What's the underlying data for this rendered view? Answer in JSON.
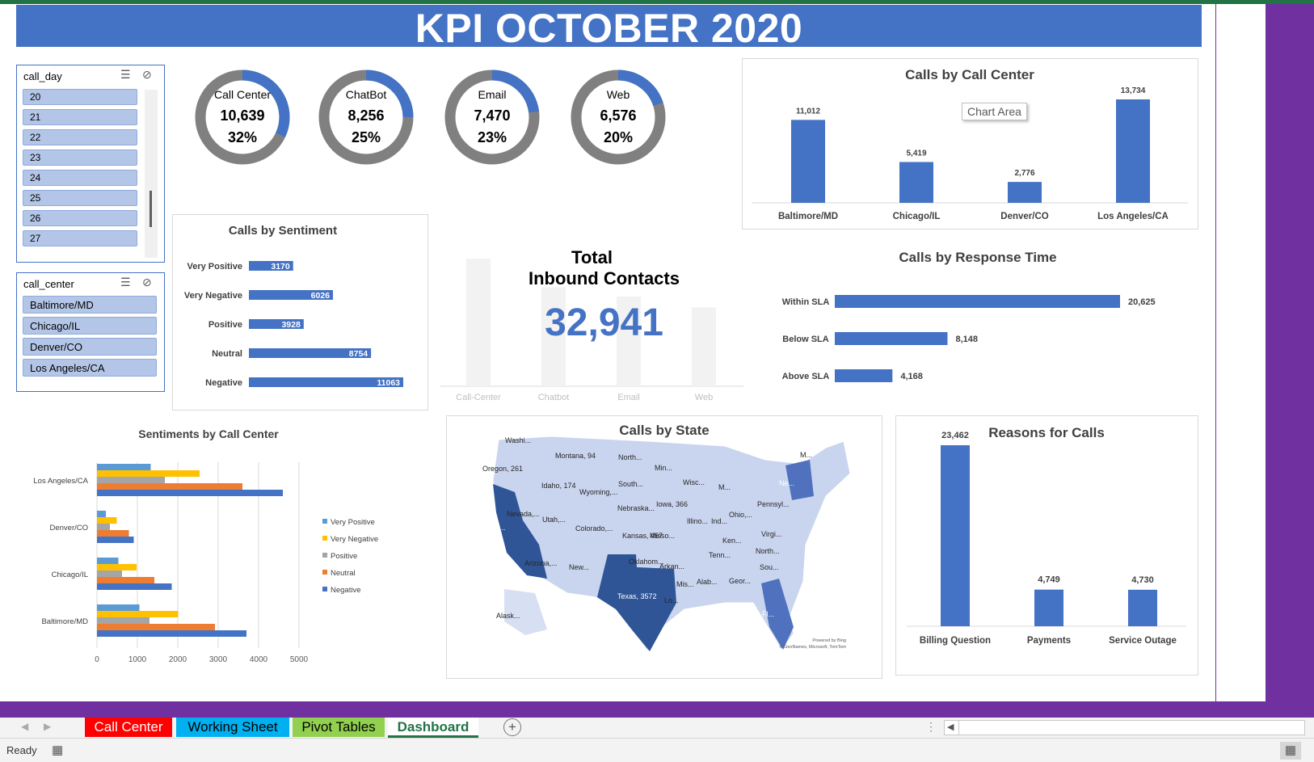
{
  "title": "KPI OCTOBER 2020",
  "slicer_day": {
    "header": "call_day",
    "items": [
      "20",
      "21",
      "22",
      "23",
      "24",
      "25",
      "26",
      "27"
    ]
  },
  "slicer_center": {
    "header": "call_center",
    "items": [
      "Baltimore/MD",
      "Chicago/IL",
      "Denver/CO",
      "Los Angeles/CA"
    ]
  },
  "colors": {
    "accent": "#4472c4",
    "ring_grey": "#808080",
    "title_bar": "#4472c4",
    "purple": "#7030a0"
  },
  "donuts": [
    {
      "label": "Call Center",
      "value": "10,639",
      "pct_label": "32%",
      "pct": 0.32
    },
    {
      "label": "ChatBot",
      "value": "8,256",
      "pct_label": "25%",
      "pct": 0.25
    },
    {
      "label": "Email",
      "value": "7,470",
      "pct_label": "23%",
      "pct": 0.23
    },
    {
      "label": "Web",
      "value": "6,576",
      "pct_label": "20%",
      "pct": 0.2
    }
  ],
  "total": {
    "title_line1": "Total",
    "title_line2": "Inbound Contacts",
    "value": "32,941"
  },
  "tooltip": "Chart Area",
  "map": {
    "title": "Calls by State",
    "credit1": "Powered by Bing",
    "credit2": "© GeoNames, Microsoft, TomTom",
    "labels": [
      "Washi...",
      "Montana, 94",
      "North...",
      "Min...",
      "Oregon, 261",
      "Idaho, 174",
      "Wyoming,...",
      "South...",
      "Wisc...",
      "M...",
      "Ne...",
      "Nevada,...",
      "Utah,...",
      "Nebraska...",
      "Iowa, 366",
      "Pennsyl...",
      "Calif...",
      "Colorado,...",
      "Kansas, 467",
      "Misso...",
      "Illino...",
      "Ind...",
      "Ohio,...",
      "Virgi...",
      "Ken...",
      "Arizona,...",
      "New...",
      "Oklahom...",
      "Arkan...",
      "Tenn...",
      "North...",
      "Sou...",
      "Texas, 3572",
      "Mis...",
      "Alab...",
      "Geor...",
      "Lo...",
      "Fl...",
      "Alask...",
      "M..."
    ]
  },
  "chart_data": [
    {
      "id": "calls_by_call_center",
      "type": "bar",
      "title": "Calls by Call Center",
      "categories": [
        "Baltimore/MD",
        "Chicago/IL",
        "Denver/CO",
        "Los Angeles/CA"
      ],
      "values": [
        11012,
        5419,
        2776,
        13734
      ],
      "value_labels": [
        "11,012",
        "5,419",
        "2,776",
        "13,734"
      ]
    },
    {
      "id": "calls_by_sentiment",
      "type": "bar",
      "orientation": "horizontal",
      "title": "Calls by Sentiment",
      "categories": [
        "Very Positive",
        "Very Negative",
        "Positive",
        "Neutral",
        "Negative"
      ],
      "values": [
        3170,
        6026,
        3928,
        8754,
        11063
      ],
      "value_labels": [
        "3170",
        "6026",
        "3928",
        "8754",
        "11063"
      ]
    },
    {
      "id": "total_inbound",
      "type": "bar",
      "title": "",
      "categories": [
        "Call-Center",
        "Chatbot",
        "Email",
        "Web"
      ],
      "values": [
        10639,
        8256,
        7470,
        6576
      ]
    },
    {
      "id": "calls_by_response_time",
      "type": "bar",
      "orientation": "horizontal",
      "title": "Calls by Response Time",
      "categories": [
        "Within SLA",
        "Below SLA",
        "Above SLA"
      ],
      "values": [
        20625,
        8148,
        4168
      ],
      "value_labels": [
        "20,625",
        "8,148",
        "4,168"
      ]
    },
    {
      "id": "sentiments_by_call_center",
      "type": "bar",
      "orientation": "horizontal",
      "title": "Sentiments by Call Center",
      "categories": [
        "Los Angeles/CA",
        "Denver/CO",
        "Chicago/IL",
        "Baltimore/MD"
      ],
      "xlim": [
        0,
        5000
      ],
      "xticks": [
        "0",
        "1000",
        "2000",
        "3000",
        "4000",
        "5000"
      ],
      "grid": true,
      "legend_position": "right",
      "series": [
        {
          "name": "Very Positive",
          "color": "#5b9bd5",
          "values": [
            1330,
            220,
            530,
            1050
          ]
        },
        {
          "name": "Very Negative",
          "color": "#ffc000",
          "values": [
            2540,
            490,
            980,
            2010
          ]
        },
        {
          "name": "Positive",
          "color": "#a5a5a5",
          "values": [
            1680,
            320,
            620,
            1300
          ]
        },
        {
          "name": "Neutral",
          "color": "#ed7d31",
          "values": [
            3600,
            790,
            1420,
            2920
          ]
        },
        {
          "name": "Negative",
          "color": "#4472c4",
          "values": [
            4600,
            910,
            1850,
            3700
          ]
        }
      ]
    },
    {
      "id": "reasons_for_calls",
      "type": "bar",
      "title": "Reasons for Calls",
      "categories": [
        "Billing Question",
        "Payments",
        "Service Outage"
      ],
      "values": [
        23462,
        4749,
        4730
      ],
      "value_labels": [
        "23,462",
        "4,749",
        "4,730"
      ]
    }
  ],
  "sheet_tabs": [
    {
      "label": "Call Center",
      "color": "#ff0000"
    },
    {
      "label": "Working Sheet",
      "color": "#00b0f0"
    },
    {
      "label": "Pivot Tables",
      "color": "#92d050"
    },
    {
      "label": "Dashboard",
      "color": "#ffffff"
    }
  ],
  "status": {
    "ready": "Ready"
  }
}
